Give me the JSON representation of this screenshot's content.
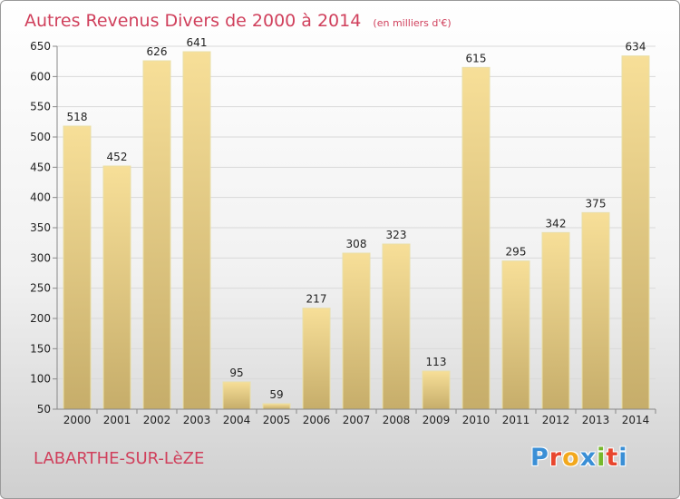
{
  "chart_data": {
    "type": "bar",
    "title": "Autres Revenus Divers de 2000 à 2014",
    "unit_label": "(en milliers d'€)",
    "categories": [
      "2000",
      "2001",
      "2002",
      "2003",
      "2004",
      "2005",
      "2006",
      "2007",
      "2008",
      "2009",
      "2010",
      "2011",
      "2012",
      "2013",
      "2014"
    ],
    "values": [
      518,
      452,
      626,
      641,
      95,
      59,
      217,
      308,
      323,
      113,
      615,
      295,
      342,
      375,
      634
    ],
    "ylim": [
      50,
      650
    ],
    "yticks": [
      50,
      100,
      150,
      200,
      250,
      300,
      350,
      400,
      450,
      500,
      550,
      600,
      650
    ],
    "grid": true,
    "bar_color_light": "#f7df98",
    "bar_color_dark": "#c6ad6a"
  },
  "footer": {
    "commune": "LABARTHE-SUR-LèZE",
    "logo_text": "Proxiti",
    "logo_colors": [
      "#3a8fd6",
      "#e8462e",
      "#f2a81d",
      "#3a8fd6",
      "#76b82a",
      "#e8462e",
      "#3a8fd6"
    ]
  }
}
